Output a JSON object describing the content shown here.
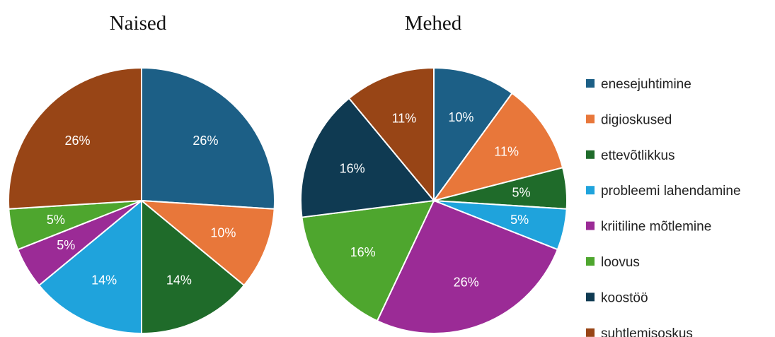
{
  "chart_data": [
    {
      "type": "pie",
      "title": "Naised",
      "categories": [
        "enesejuhtimine",
        "digioskused",
        "ettevõtlikkus",
        "probleemi lahendamine",
        "kriitiline mõtlemine",
        "loovus",
        "koostöö",
        "suhtlemisoskus"
      ],
      "values": [
        26,
        10,
        14,
        14,
        5,
        5,
        0,
        26
      ],
      "labels": [
        "26%",
        "10%",
        "14%",
        "14%",
        "5%",
        "5%",
        "",
        "26%"
      ]
    },
    {
      "type": "pie",
      "title": "Mehed",
      "categories": [
        "enesejuhtimine",
        "digioskused",
        "ettevõtlikkus",
        "probleemi lahendamine",
        "kriitiline mõtlemine",
        "loovus",
        "koostöö",
        "suhtlemisoskus"
      ],
      "values": [
        10,
        11,
        5,
        5,
        26,
        16,
        16,
        11
      ],
      "labels": [
        "10%",
        "11%",
        "5%",
        "5%",
        "26%",
        "16%",
        "16%",
        "11%"
      ]
    }
  ],
  "legend": {
    "placement": "right",
    "items": [
      "enesejuhtimine",
      "digioskused",
      "ettevõtlikkus",
      "probleemi lahendamine",
      "kriitiline mõtlemine",
      "loovus",
      "koostöö",
      "suhtlemisoskus"
    ]
  },
  "colors": [
    "#1c5f86",
    "#e8773a",
    "#1f6b2a",
    "#1fa3dc",
    "#9b2b96",
    "#4ea62e",
    "#0f3a52",
    "#984516"
  ]
}
